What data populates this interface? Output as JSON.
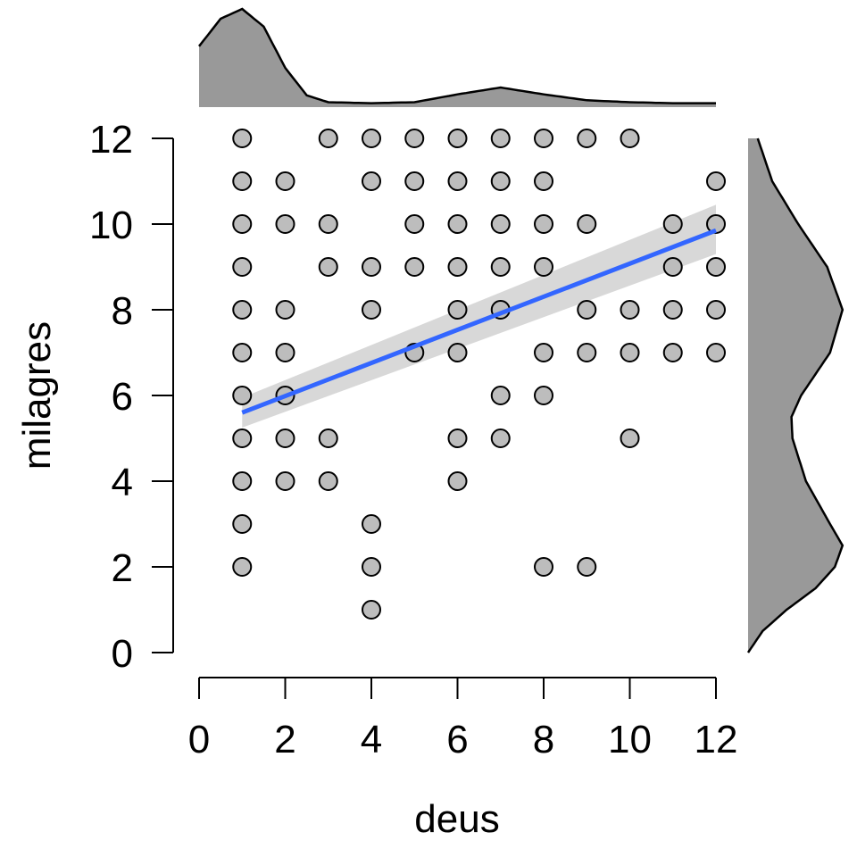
{
  "chart_data": {
    "type": "scatter",
    "title": "",
    "xlabel": "deus",
    "ylabel": "milagres",
    "xlim": [
      0,
      12
    ],
    "ylim": [
      0,
      12
    ],
    "x_ticks": [
      0,
      2,
      4,
      6,
      8,
      10,
      12
    ],
    "y_ticks": [
      0,
      2,
      4,
      6,
      8,
      10,
      12
    ],
    "x_tick_labels": [
      "0",
      "2",
      "4",
      "6",
      "8",
      "10",
      "12"
    ],
    "y_tick_labels": [
      "0",
      "2",
      "4",
      "6",
      "8",
      "10",
      "12"
    ],
    "grid": false,
    "points": [
      [
        1,
        12
      ],
      [
        1,
        11
      ],
      [
        1,
        10
      ],
      [
        1,
        9
      ],
      [
        1,
        8
      ],
      [
        1,
        7
      ],
      [
        1,
        6
      ],
      [
        1,
        5
      ],
      [
        1,
        4
      ],
      [
        1,
        3
      ],
      [
        1,
        2
      ],
      [
        2,
        11
      ],
      [
        2,
        10
      ],
      [
        2,
        8
      ],
      [
        2,
        7
      ],
      [
        2,
        6
      ],
      [
        2,
        5
      ],
      [
        2,
        4
      ],
      [
        3,
        12
      ],
      [
        3,
        10
      ],
      [
        3,
        9
      ],
      [
        3,
        5
      ],
      [
        3,
        4
      ],
      [
        4,
        12
      ],
      [
        4,
        11
      ],
      [
        4,
        9
      ],
      [
        4,
        8
      ],
      [
        4,
        3
      ],
      [
        4,
        2
      ],
      [
        4,
        1
      ],
      [
        5,
        12
      ],
      [
        5,
        11
      ],
      [
        5,
        10
      ],
      [
        5,
        9
      ],
      [
        5,
        7
      ],
      [
        6,
        12
      ],
      [
        6,
        11
      ],
      [
        6,
        10
      ],
      [
        6,
        9
      ],
      [
        6,
        8
      ],
      [
        6,
        7
      ],
      [
        6,
        5
      ],
      [
        6,
        4
      ],
      [
        7,
        12
      ],
      [
        7,
        11
      ],
      [
        7,
        10
      ],
      [
        7,
        9
      ],
      [
        7,
        8
      ],
      [
        7,
        6
      ],
      [
        7,
        5
      ],
      [
        8,
        12
      ],
      [
        8,
        11
      ],
      [
        8,
        10
      ],
      [
        8,
        9
      ],
      [
        8,
        7
      ],
      [
        8,
        6
      ],
      [
        8,
        2
      ],
      [
        9,
        12
      ],
      [
        9,
        10
      ],
      [
        9,
        8
      ],
      [
        9,
        7
      ],
      [
        9,
        2
      ],
      [
        10,
        12
      ],
      [
        10,
        8
      ],
      [
        10,
        7
      ],
      [
        10,
        5
      ],
      [
        11,
        10
      ],
      [
        11,
        9
      ],
      [
        11,
        8
      ],
      [
        11,
        7
      ],
      [
        12,
        11
      ],
      [
        12,
        10
      ],
      [
        12,
        9
      ],
      [
        12,
        8
      ],
      [
        12,
        7
      ]
    ],
    "regression": {
      "x": [
        1,
        12
      ],
      "y": [
        5.6,
        9.85
      ],
      "ci_lower": [
        5.25,
        9.3
      ],
      "ci_upper": [
        5.95,
        10.45
      ]
    },
    "marginal_x_density": [
      [
        0,
        0.62
      ],
      [
        0.5,
        0.9
      ],
      [
        1,
        1.0
      ],
      [
        1.5,
        0.82
      ],
      [
        2,
        0.4
      ],
      [
        2.5,
        0.12
      ],
      [
        3,
        0.05
      ],
      [
        4,
        0.04
      ],
      [
        5,
        0.05
      ],
      [
        6,
        0.13
      ],
      [
        7,
        0.2
      ],
      [
        8,
        0.13
      ],
      [
        9,
        0.07
      ],
      [
        10,
        0.05
      ],
      [
        11,
        0.04
      ],
      [
        12,
        0.04
      ]
    ],
    "marginal_y_density": [
      [
        0,
        0.0
      ],
      [
        0.5,
        0.15
      ],
      [
        1,
        0.4
      ],
      [
        1.5,
        0.7
      ],
      [
        2,
        0.9
      ],
      [
        2.5,
        0.98
      ],
      [
        3,
        0.85
      ],
      [
        4,
        0.6
      ],
      [
        5,
        0.46
      ],
      [
        5.5,
        0.45
      ],
      [
        6,
        0.55
      ],
      [
        7,
        0.85
      ],
      [
        8,
        0.98
      ],
      [
        9,
        0.82
      ],
      [
        10,
        0.52
      ],
      [
        11,
        0.25
      ],
      [
        12,
        0.1
      ]
    ],
    "colors": {
      "point_fill": "#bdbdbd",
      "point_stroke": "#000000",
      "regression_line": "#3366ff",
      "confidence_band": "#d4d4d4",
      "density_fill": "#999999",
      "density_stroke": "#000000"
    }
  }
}
